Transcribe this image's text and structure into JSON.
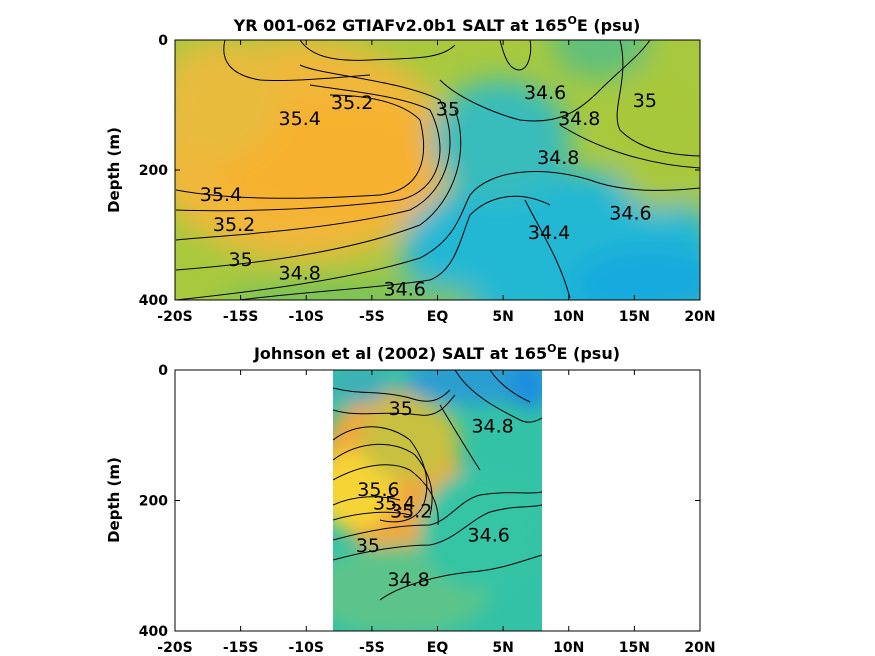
{
  "chart_data": [
    {
      "type": "contour",
      "title": "YR 001-062 GTIAFv2.0b1 SALT at 165",
      "title_sup": "O",
      "title_suffix": "E (psu)",
      "ylabel": "Depth (m)",
      "xlabel": "",
      "x_ticks": [
        "-20S",
        "-15S",
        "-10S",
        "-5S",
        "EQ",
        "5N",
        "10N",
        "15N",
        "20N"
      ],
      "y_ticks": [
        "0",
        "200",
        "400"
      ],
      "xlim": [
        -20,
        20
      ],
      "ylim": [
        0,
        400
      ],
      "y_reversed": true,
      "data_extent_lat": [
        -20,
        20
      ],
      "colors": {
        "high": "#f7b030",
        "mid": "#9cc838",
        "low": "#1ab6d6"
      },
      "contour_labels": [
        {
          "text": "35.2",
          "lat": -6.5,
          "depth": 95
        },
        {
          "text": "35.4",
          "lat": -10.5,
          "depth": 120
        },
        {
          "text": "35",
          "lat": 0.8,
          "depth": 105
        },
        {
          "text": "34.6",
          "lat": 8.2,
          "depth": 80
        },
        {
          "text": "34.8",
          "lat": 10.8,
          "depth": 120
        },
        {
          "text": "35",
          "lat": 15.8,
          "depth": 92
        },
        {
          "text": "34.8",
          "lat": 9.2,
          "depth": 180
        },
        {
          "text": "34.6",
          "lat": 14.7,
          "depth": 265
        },
        {
          "text": "35.4",
          "lat": -16.5,
          "depth": 237
        },
        {
          "text": "35.2",
          "lat": -15.5,
          "depth": 283
        },
        {
          "text": "35",
          "lat": -15.0,
          "depth": 337
        },
        {
          "text": "34.8",
          "lat": -10.5,
          "depth": 358
        },
        {
          "text": "34.4",
          "lat": 8.5,
          "depth": 295
        },
        {
          "text": "34.6",
          "lat": -2.5,
          "depth": 382
        }
      ]
    },
    {
      "type": "contour",
      "title": "Johnson et al (2002) SALT at 165",
      "title_sup": "O",
      "title_suffix": "E (psu)",
      "ylabel": "Depth (m)",
      "xlabel": "",
      "x_ticks": [
        "-20S",
        "-15S",
        "-10S",
        "-5S",
        "EQ",
        "5N",
        "10N",
        "15N",
        "20N"
      ],
      "y_ticks": [
        "0",
        "200",
        "400"
      ],
      "xlim": [
        -20,
        20
      ],
      "ylim": [
        0,
        400
      ],
      "y_reversed": true,
      "data_extent_lat": [
        -8,
        8
      ],
      "colors": {
        "high": "#f7e038",
        "mid": "#8cc43a",
        "low": "#28bfa6",
        "top": "#1e96d8"
      },
      "contour_labels": [
        {
          "text": "35",
          "lat": -2.8,
          "depth": 58
        },
        {
          "text": "34.8",
          "lat": 4.2,
          "depth": 85
        },
        {
          "text": "35.6",
          "lat": -4.5,
          "depth": 182
        },
        {
          "text": "35.4",
          "lat": -3.3,
          "depth": 203
        },
        {
          "text": "35.2",
          "lat": -2.0,
          "depth": 215
        },
        {
          "text": "35",
          "lat": -5.3,
          "depth": 268
        },
        {
          "text": "34.6",
          "lat": 3.9,
          "depth": 252
        },
        {
          "text": "34.8",
          "lat": -2.2,
          "depth": 320
        }
      ]
    }
  ]
}
